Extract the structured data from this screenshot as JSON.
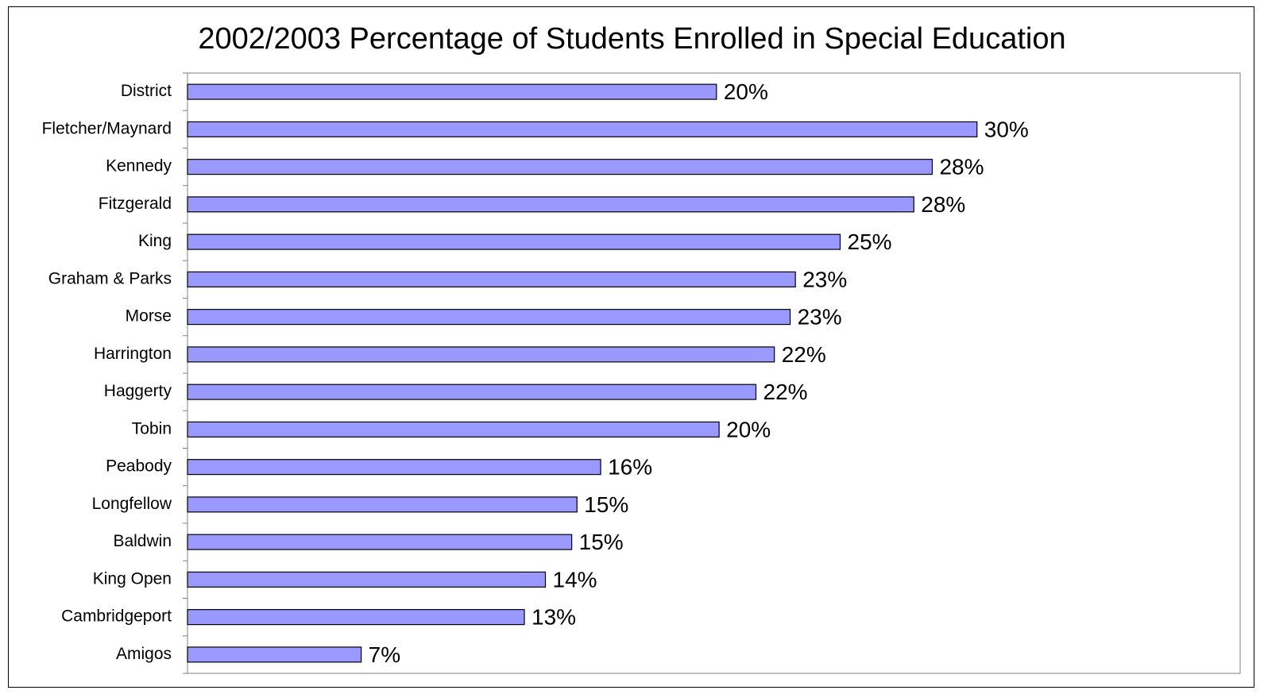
{
  "chart_data": {
    "type": "bar",
    "orientation": "horizontal",
    "title": "2002/2003 Percentage of Students Enrolled in Special Education",
    "xlabel": "",
    "ylabel": "",
    "categories": [
      "District",
      "Fletcher/Maynard",
      "Kennedy",
      "Fitzgerald",
      "King",
      "Graham & Parks",
      "Morse",
      "Harrington",
      "Haggerty",
      "Tobin",
      "Peabody",
      "Longfellow",
      "Baldwin",
      "King Open",
      "Cambridgeport",
      "Amigos"
    ],
    "values": [
      20.1,
      30.0,
      28.3,
      27.6,
      24.8,
      23.1,
      22.9,
      22.3,
      21.6,
      20.2,
      15.7,
      14.8,
      14.6,
      13.6,
      12.8,
      6.6
    ],
    "data_labels": [
      "20%",
      "30%",
      "28%",
      "28%",
      "25%",
      "23%",
      "23%",
      "22%",
      "22%",
      "20%",
      "16%",
      "15%",
      "15%",
      "14%",
      "13%",
      "7%"
    ],
    "xlim": [
      0,
      40
    ],
    "grid": false,
    "legend": "none",
    "colors": {
      "bar_fill": "#9999ff",
      "bar_stroke": "#000000",
      "plot_border": "#808080",
      "axis": "#808080"
    }
  }
}
